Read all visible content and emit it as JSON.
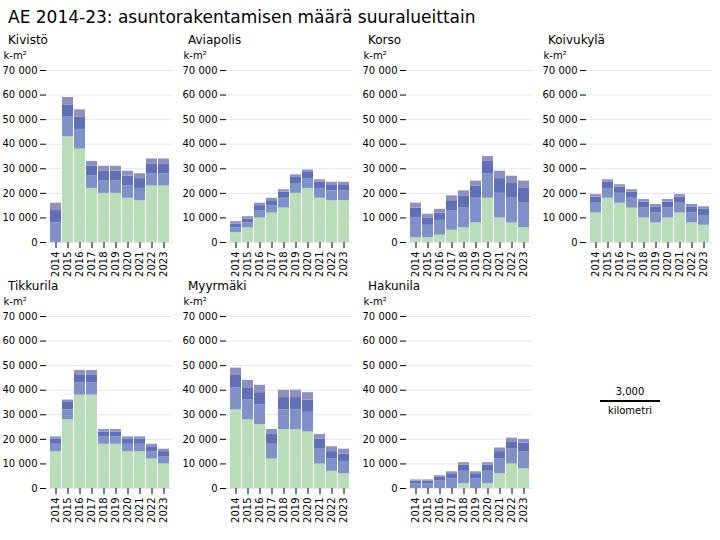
{
  "title": "AE 2014-23: asuntorakentamisen määrä suuralueittain",
  "annotations": [
    "3,000",
    "kilometri"
  ],
  "chart_data": [
    {
      "type": "bar",
      "title": "Kivistö",
      "stacked": true,
      "grid": true,
      "ylabel": "k-m²",
      "categories": [
        "2014",
        "2015",
        "2016",
        "2017",
        "2018",
        "2019",
        "2020",
        "2021",
        "2022",
        "2023"
      ],
      "series": [
        {
          "color": "#b8ddb8",
          "values": [
            0,
            43000,
            38000,
            22000,
            20000,
            20000,
            18000,
            17000,
            23000,
            23000
          ]
        },
        {
          "color": "#8090c8",
          "values": [
            8000,
            8000,
            8000,
            5000,
            5000,
            5000,
            5000,
            5000,
            5000,
            5000
          ]
        },
        {
          "color": "#6070b8",
          "values": [
            5000,
            5000,
            5000,
            4000,
            4000,
            4000,
            4000,
            4000,
            4000,
            4000
          ]
        },
        {
          "color": "#9090c0",
          "values": [
            3000,
            3000,
            3000,
            2000,
            2000,
            2000,
            2000,
            2000,
            2000,
            2000
          ]
        }
      ],
      "ylim": [
        0,
        70000
      ],
      "yticks": [
        0,
        {
          "value": 10000,
          "label": "10 000"
        },
        {
          "value": 20000,
          "label": "20 000"
        },
        {
          "value": 30000,
          "label": "30 000"
        },
        {
          "value": 40000,
          "label": "40 000"
        },
        {
          "value": 50000,
          "label": "50 000"
        },
        {
          "value": 60000,
          "label": "60 000"
        },
        {
          "value": 70000,
          "label": "70 000"
        }
      ]
    },
    {
      "type": "bar",
      "title": "Aviapolis",
      "stacked": true,
      "grid": true,
      "ylabel": "k-m²",
      "categories": [
        "2014",
        "2015",
        "2016",
        "2017",
        "2018",
        "2019",
        "2020",
        "2021",
        "2022",
        "2023"
      ],
      "series": [
        {
          "color": "#b8ddb8",
          "values": [
            4000,
            6000,
            10000,
            12000,
            14000,
            20000,
            22000,
            18000,
            17000,
            17000
          ]
        },
        {
          "color": "#8090c8",
          "values": [
            2000,
            2000,
            3000,
            3000,
            4000,
            4000,
            4000,
            4000,
            4000,
            4000
          ]
        },
        {
          "color": "#6070b8",
          "values": [
            1500,
            1500,
            2000,
            2000,
            2500,
            2500,
            2500,
            2500,
            2500,
            2500
          ]
        },
        {
          "color": "#9090c0",
          "values": [
            1000,
            1000,
            1000,
            1000,
            1000,
            1000,
            1000,
            1000,
            1000,
            1000
          ]
        }
      ],
      "ylim": [
        0,
        70000
      ],
      "yticks": [
        0,
        {
          "value": 10000,
          "label": "10 000"
        },
        {
          "value": 20000,
          "label": "20 000"
        },
        {
          "value": 30000,
          "label": "30 000"
        },
        {
          "value": 40000,
          "label": "40 000"
        },
        {
          "value": 50000,
          "label": "50 000"
        },
        {
          "value": 60000,
          "label": "60 000"
        },
        {
          "value": 70000,
          "label": "70 000"
        }
      ]
    },
    {
      "type": "bar",
      "title": "Korso",
      "stacked": true,
      "grid": true,
      "ylabel": "k-m²",
      "categories": [
        "2014",
        "2015",
        "2016",
        "2017",
        "2018",
        "2019",
        "2020",
        "2021",
        "2022",
        "2023"
      ],
      "series": [
        {
          "color": "#b8ddb8",
          "values": [
            2000,
            2000,
            3000,
            5000,
            6000,
            8000,
            18000,
            10000,
            8000,
            6000
          ]
        },
        {
          "color": "#8090c8",
          "values": [
            8000,
            5000,
            6000,
            8000,
            8000,
            10000,
            10000,
            10000,
            10000,
            10000
          ]
        },
        {
          "color": "#6070b8",
          "values": [
            4000,
            3000,
            3000,
            4000,
            5000,
            5000,
            5000,
            6000,
            6000,
            6000
          ]
        },
        {
          "color": "#9090c0",
          "values": [
            2000,
            1500,
            1500,
            2000,
            2000,
            2000,
            2000,
            3000,
            3000,
            3000
          ]
        }
      ],
      "ylim": [
        0,
        70000
      ],
      "yticks": [
        0,
        {
          "value": 10000,
          "label": "10 000"
        },
        {
          "value": 20000,
          "label": "20 000"
        },
        {
          "value": 30000,
          "label": "30 000"
        },
        {
          "value": 40000,
          "label": "40 000"
        },
        {
          "value": 50000,
          "label": "50 000"
        },
        {
          "value": 60000,
          "label": "60 000"
        },
        {
          "value": 70000,
          "label": "70 000"
        }
      ]
    },
    {
      "type": "bar",
      "title": "Koivukylä",
      "stacked": true,
      "grid": true,
      "ylabel": "k-m²",
      "categories": [
        "2014",
        "2015",
        "2016",
        "2017",
        "2018",
        "2019",
        "2020",
        "2021",
        "2022",
        "2023"
      ],
      "series": [
        {
          "color": "#b8ddb8",
          "values": [
            12000,
            18000,
            16000,
            14000,
            10000,
            8000,
            10000,
            12000,
            8000,
            7000
          ]
        },
        {
          "color": "#8090c8",
          "values": [
            4000,
            4000,
            4000,
            4000,
            4000,
            4000,
            4000,
            4000,
            4000,
            4000
          ]
        },
        {
          "color": "#6070b8",
          "values": [
            2500,
            2500,
            2500,
            2500,
            2500,
            2500,
            2500,
            2500,
            2500,
            2500
          ]
        },
        {
          "color": "#9090c0",
          "values": [
            1000,
            1000,
            1000,
            1000,
            1000,
            1000,
            1000,
            1000,
            1000,
            1000
          ]
        }
      ],
      "ylim": [
        0,
        70000
      ],
      "yticks": [
        0,
        {
          "value": 10000,
          "label": "10 000"
        },
        {
          "value": 20000,
          "label": "20 000"
        },
        {
          "value": 30000,
          "label": "30 000"
        },
        {
          "value": 40000,
          "label": "40 000"
        },
        {
          "value": 50000,
          "label": "50 000"
        },
        {
          "value": 60000,
          "label": "60 000"
        },
        {
          "value": 70000,
          "label": "70 000"
        }
      ]
    },
    {
      "type": "bar",
      "title": "Tikkurila",
      "stacked": true,
      "grid": true,
      "ylabel": "k-m²",
      "categories": [
        "2014",
        "2015",
        "2016",
        "2017",
        "2018",
        "2019",
        "2020",
        "2021",
        "2022",
        "2023"
      ],
      "series": [
        {
          "color": "#b8ddb8",
          "values": [
            15000,
            28000,
            38000,
            38000,
            18000,
            18000,
            15000,
            15000,
            12000,
            10000
          ]
        },
        {
          "color": "#8090c8",
          "values": [
            3000,
            4000,
            5000,
            5000,
            3000,
            3000,
            3000,
            3000,
            3000,
            3000
          ]
        },
        {
          "color": "#6070b8",
          "values": [
            2000,
            3000,
            3000,
            3000,
            2000,
            2000,
            2000,
            2000,
            2000,
            2000
          ]
        },
        {
          "color": "#9090c0",
          "values": [
            1000,
            1000,
            2000,
            2000,
            1000,
            1000,
            1000,
            1000,
            1000,
            1000
          ]
        }
      ],
      "ylim": [
        0,
        70000
      ],
      "yticks": [
        0,
        {
          "value": 10000,
          "label": "10 000"
        },
        {
          "value": 20000,
          "label": "20 000"
        },
        {
          "value": 30000,
          "label": "30 000"
        },
        {
          "value": 40000,
          "label": "40 000"
        },
        {
          "value": 50000,
          "label": "50 000"
        },
        {
          "value": 60000,
          "label": "60 000"
        },
        {
          "value": 70000,
          "label": "70 000"
        }
      ]
    },
    {
      "type": "bar",
      "title": "Myyrmäki",
      "stacked": true,
      "grid": true,
      "ylabel": "k-m²",
      "categories": [
        "2014",
        "2015",
        "2016",
        "2017",
        "2018",
        "2019",
        "2020",
        "2021",
        "2022",
        "2023"
      ],
      "series": [
        {
          "color": "#b8ddb8",
          "values": [
            32000,
            28000,
            26000,
            12000,
            24000,
            24000,
            23000,
            10000,
            7000,
            6000
          ]
        },
        {
          "color": "#8090c8",
          "values": [
            9000,
            8000,
            8000,
            6000,
            8000,
            8000,
            8000,
            6000,
            5000,
            5000
          ]
        },
        {
          "color": "#6070b8",
          "values": [
            5000,
            5000,
            5000,
            4000,
            5000,
            5000,
            5000,
            4000,
            3000,
            3000
          ]
        },
        {
          "color": "#9090c0",
          "values": [
            3000,
            3000,
            3000,
            2000,
            3000,
            3000,
            3000,
            2000,
            2000,
            2000
          ]
        }
      ],
      "ylim": [
        0,
        70000
      ],
      "yticks": [
        0,
        {
          "value": 10000,
          "label": "10 000"
        },
        {
          "value": 20000,
          "label": "20 000"
        },
        {
          "value": 30000,
          "label": "30 000"
        },
        {
          "value": 40000,
          "label": "40 000"
        },
        {
          "value": 50000,
          "label": "50 000"
        },
        {
          "value": 60000,
          "label": "60 000"
        },
        {
          "value": 70000,
          "label": "70 000"
        }
      ]
    },
    {
      "type": "bar",
      "title": "Hakunila",
      "stacked": true,
      "grid": true,
      "ylabel": "k-m²",
      "categories": [
        "2014",
        "2015",
        "2016",
        "2017",
        "2018",
        "2019",
        "2020",
        "2021",
        "2022",
        "2023"
      ],
      "series": [
        {
          "color": "#b8ddb8",
          "values": [
            0,
            0,
            0,
            0,
            2000,
            0,
            2000,
            6000,
            10000,
            8000
          ]
        },
        {
          "color": "#8090c8",
          "values": [
            2000,
            2000,
            3000,
            4000,
            5000,
            4000,
            5000,
            6000,
            6000,
            7000
          ]
        },
        {
          "color": "#6070b8",
          "values": [
            1000,
            1000,
            1500,
            2000,
            2500,
            2000,
            2500,
            3000,
            3000,
            3500
          ]
        },
        {
          "color": "#9090c0",
          "values": [
            500,
            500,
            700,
            800,
            1000,
            800,
            1000,
            1500,
            1500,
            1500
          ]
        }
      ],
      "ylim": [
        0,
        70000
      ],
      "yticks": [
        0,
        {
          "value": 10000,
          "label": "10 000"
        },
        {
          "value": 20000,
          "label": "20 000"
        },
        {
          "value": 30000,
          "label": "30 000"
        },
        {
          "value": 40000,
          "label": "40 000"
        },
        {
          "value": 50000,
          "label": "50 000"
        },
        {
          "value": 60000,
          "label": "60 000"
        },
        {
          "value": 70000,
          "label": "70 000"
        }
      ]
    }
  ]
}
